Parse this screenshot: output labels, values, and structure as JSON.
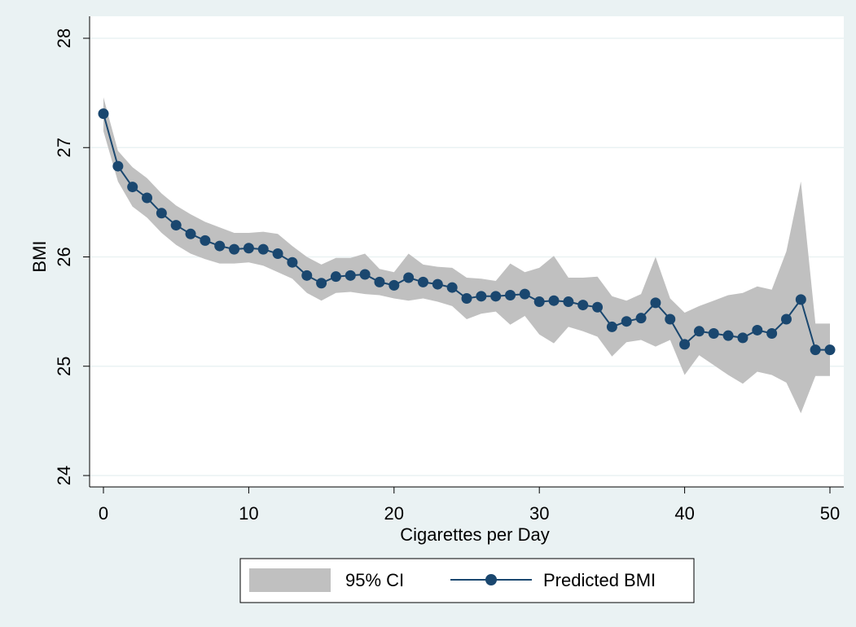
{
  "chart_data": {
    "type": "line",
    "title": "",
    "xlabel": "Cigarettes per Day",
    "ylabel": "BMI",
    "xlim": [
      0,
      50
    ],
    "ylim": [
      24,
      28
    ],
    "x_ticks": [
      0,
      10,
      20,
      30,
      40,
      50
    ],
    "y_ticks": [
      24,
      25,
      26,
      27,
      28
    ],
    "grid": "horizontal",
    "legend_position": "bottom",
    "colors": {
      "background": "#eaf2f3",
      "plot_background": "#ffffff",
      "grid": "#eaf2f3",
      "line": "#1a476f",
      "ci_band": "#c0c0c0"
    },
    "x": [
      0,
      1,
      2,
      3,
      4,
      5,
      6,
      7,
      8,
      9,
      10,
      11,
      12,
      13,
      14,
      15,
      16,
      17,
      18,
      19,
      20,
      21,
      22,
      23,
      24,
      25,
      26,
      27,
      28,
      29,
      30,
      31,
      32,
      33,
      34,
      35,
      36,
      37,
      38,
      39,
      40,
      41,
      42,
      43,
      44,
      45,
      46,
      47,
      48,
      49,
      50
    ],
    "series": [
      {
        "name": "Predicted BMI",
        "type": "line",
        "values": [
          27.31,
          26.83,
          26.64,
          26.54,
          26.4,
          26.29,
          26.21,
          26.15,
          26.1,
          26.07,
          26.08,
          26.07,
          26.03,
          25.95,
          25.83,
          25.76,
          25.82,
          25.83,
          25.84,
          25.77,
          25.74,
          25.81,
          25.77,
          25.75,
          25.72,
          25.62,
          25.64,
          25.64,
          25.65,
          25.66,
          25.59,
          25.6,
          25.59,
          25.56,
          25.54,
          25.36,
          25.41,
          25.44,
          25.58,
          25.43,
          25.2,
          25.32,
          25.3,
          25.28,
          25.26,
          25.33,
          25.3,
          25.43,
          25.61,
          25.15,
          25.15
        ]
      },
      {
        "name": "95% CI",
        "type": "area",
        "upper": [
          27.46,
          26.97,
          26.82,
          26.72,
          26.58,
          26.47,
          26.39,
          26.32,
          26.27,
          26.22,
          26.22,
          26.23,
          26.21,
          26.1,
          26.0,
          25.93,
          25.99,
          25.99,
          26.03,
          25.89,
          25.86,
          26.03,
          25.93,
          25.91,
          25.9,
          25.81,
          25.8,
          25.78,
          25.94,
          25.86,
          25.9,
          26.01,
          25.81,
          25.81,
          25.82,
          25.64,
          25.6,
          25.66,
          26.0,
          25.62,
          25.49,
          25.55,
          25.6,
          25.65,
          25.67,
          25.73,
          25.7,
          26.05,
          26.69,
          25.39,
          25.39
        ],
        "lower": [
          27.15,
          26.69,
          26.46,
          26.36,
          26.22,
          26.11,
          26.03,
          25.98,
          25.94,
          25.94,
          25.95,
          25.92,
          25.86,
          25.8,
          25.67,
          25.6,
          25.67,
          25.68,
          25.66,
          25.65,
          25.62,
          25.6,
          25.62,
          25.59,
          25.55,
          25.43,
          25.48,
          25.5,
          25.38,
          25.46,
          25.29,
          25.21,
          25.36,
          25.32,
          25.27,
          25.09,
          25.22,
          25.24,
          25.18,
          25.24,
          24.92,
          25.1,
          25.01,
          24.92,
          24.84,
          24.95,
          24.92,
          24.85,
          24.57,
          24.91,
          24.91
        ]
      }
    ]
  }
}
